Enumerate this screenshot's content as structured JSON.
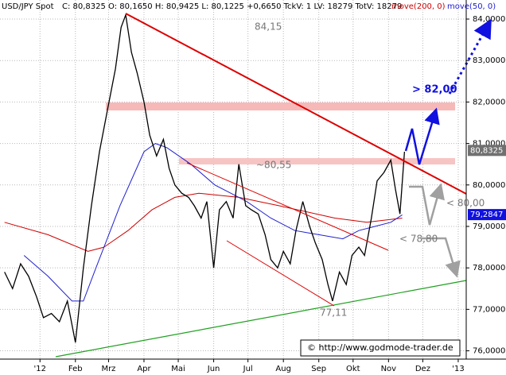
{
  "header": {
    "info": "C: 80,8325 O: 80,1650 H: 80,9425 L: 80,1225 +0,6650 TckV: 1 LV: 18279 TotV: 18279"
  },
  "chart_data": {
    "type": "line",
    "series": [
      {
        "name": "USD/JPY Spot",
        "color": "#000000",
        "x": [
          -31,
          -24,
          -17,
          -10,
          -3,
          3,
          10,
          17,
          24,
          31,
          38,
          45,
          52,
          59,
          66,
          71,
          75,
          80,
          85,
          91,
          96,
          102,
          108,
          113,
          118,
          124,
          130,
          135,
          141,
          146,
          152,
          157,
          163,
          169,
          174,
          180,
          185,
          191,
          197,
          202,
          208,
          213,
          219,
          224,
          230,
          236,
          241,
          247,
          252,
          256,
          262,
          268,
          273,
          279,
          284,
          290,
          295,
          301,
          307,
          311,
          315,
          319
        ],
        "values": [
          77.9,
          77.5,
          78.1,
          77.8,
          77.3,
          76.8,
          76.9,
          76.7,
          77.2,
          76.2,
          78.0,
          79.5,
          80.8,
          81.8,
          82.8,
          83.8,
          84.1,
          83.2,
          82.7,
          82.0,
          81.2,
          80.7,
          81.1,
          80.4,
          80.0,
          79.8,
          79.7,
          79.5,
          79.2,
          79.6,
          78.0,
          79.4,
          79.6,
          79.2,
          80.5,
          79.5,
          79.4,
          79.3,
          78.8,
          78.2,
          78.0,
          78.4,
          78.1,
          78.9,
          79.6,
          79.0,
          78.6,
          78.2,
          77.6,
          77.2,
          77.9,
          77.6,
          78.3,
          78.5,
          78.3,
          79.2,
          80.1,
          80.3,
          80.6,
          79.9,
          79.3,
          80.8
        ]
      },
      {
        "name": "move(200, 0)",
        "color": "#cc0000",
        "x": [
          -31,
          7,
          42,
          56,
          77,
          98,
          118,
          139,
          174,
          209,
          258,
          286,
          317
        ],
        "values": [
          79.1,
          78.8,
          78.4,
          78.5,
          78.9,
          79.4,
          79.7,
          79.8,
          79.7,
          79.5,
          79.2,
          79.1,
          79.2
        ]
      },
      {
        "name": "move(50, 0)",
        "color": "#2020d0",
        "x": [
          -14,
          7,
          28,
          38,
          49,
          70,
          91,
          101,
          111,
          132,
          153,
          167,
          181,
          202,
          223,
          244,
          265,
          279,
          293,
          307,
          317
        ],
        "values": [
          78.3,
          77.8,
          77.2,
          77.2,
          78.0,
          79.5,
          80.8,
          81.0,
          80.9,
          80.5,
          80.0,
          79.8,
          79.6,
          79.2,
          78.9,
          78.8,
          78.7,
          78.9,
          79.0,
          79.1,
          79.28
        ]
      }
    ],
    "xlim": [
      -35,
      373
    ],
    "xticks": [
      {
        "value": 0,
        "label": "'12"
      },
      {
        "value": 31,
        "label": "Feb"
      },
      {
        "value": 60,
        "label": "Mrz"
      },
      {
        "value": 91,
        "label": "Apr"
      },
      {
        "value": 121,
        "label": "Mai"
      },
      {
        "value": 152,
        "label": "Jun"
      },
      {
        "value": 182,
        "label": "Jul"
      },
      {
        "value": 213,
        "label": "Aug"
      },
      {
        "value": 244,
        "label": "Sep"
      },
      {
        "value": 274,
        "label": "Okt"
      },
      {
        "value": 305,
        "label": "Nov"
      },
      {
        "value": 335,
        "label": "Dez"
      },
      {
        "value": 366,
        "label": "'13"
      }
    ],
    "ylim": [
      75.8,
      84.46
    ],
    "yticks": [
      {
        "value": 76,
        "label": "76,0000"
      },
      {
        "value": 77,
        "label": "77,0000"
      },
      {
        "value": 78,
        "label": "78,0000"
      },
      {
        "value": 79,
        "label": "79,0000"
      },
      {
        "value": 80,
        "label": "80,0000"
      },
      {
        "value": 81,
        "label": "81,0000"
      },
      {
        "value": 82,
        "label": "82,0000"
      },
      {
        "value": 83,
        "label": "83,0000"
      },
      {
        "value": 84,
        "label": "84,0000"
      }
    ],
    "grid": true,
    "last_labels": [
      {
        "value": 80.8325,
        "label": "80,8325"
      },
      {
        "value": 79.2847,
        "label": "79,2847"
      }
    ],
    "annotations": [
      "84,15",
      "~80,55",
      "77,11",
      "> 82,00",
      "< 80,00",
      "< 78,80"
    ],
    "source": "© http://www.godmode-trader.de"
  }
}
